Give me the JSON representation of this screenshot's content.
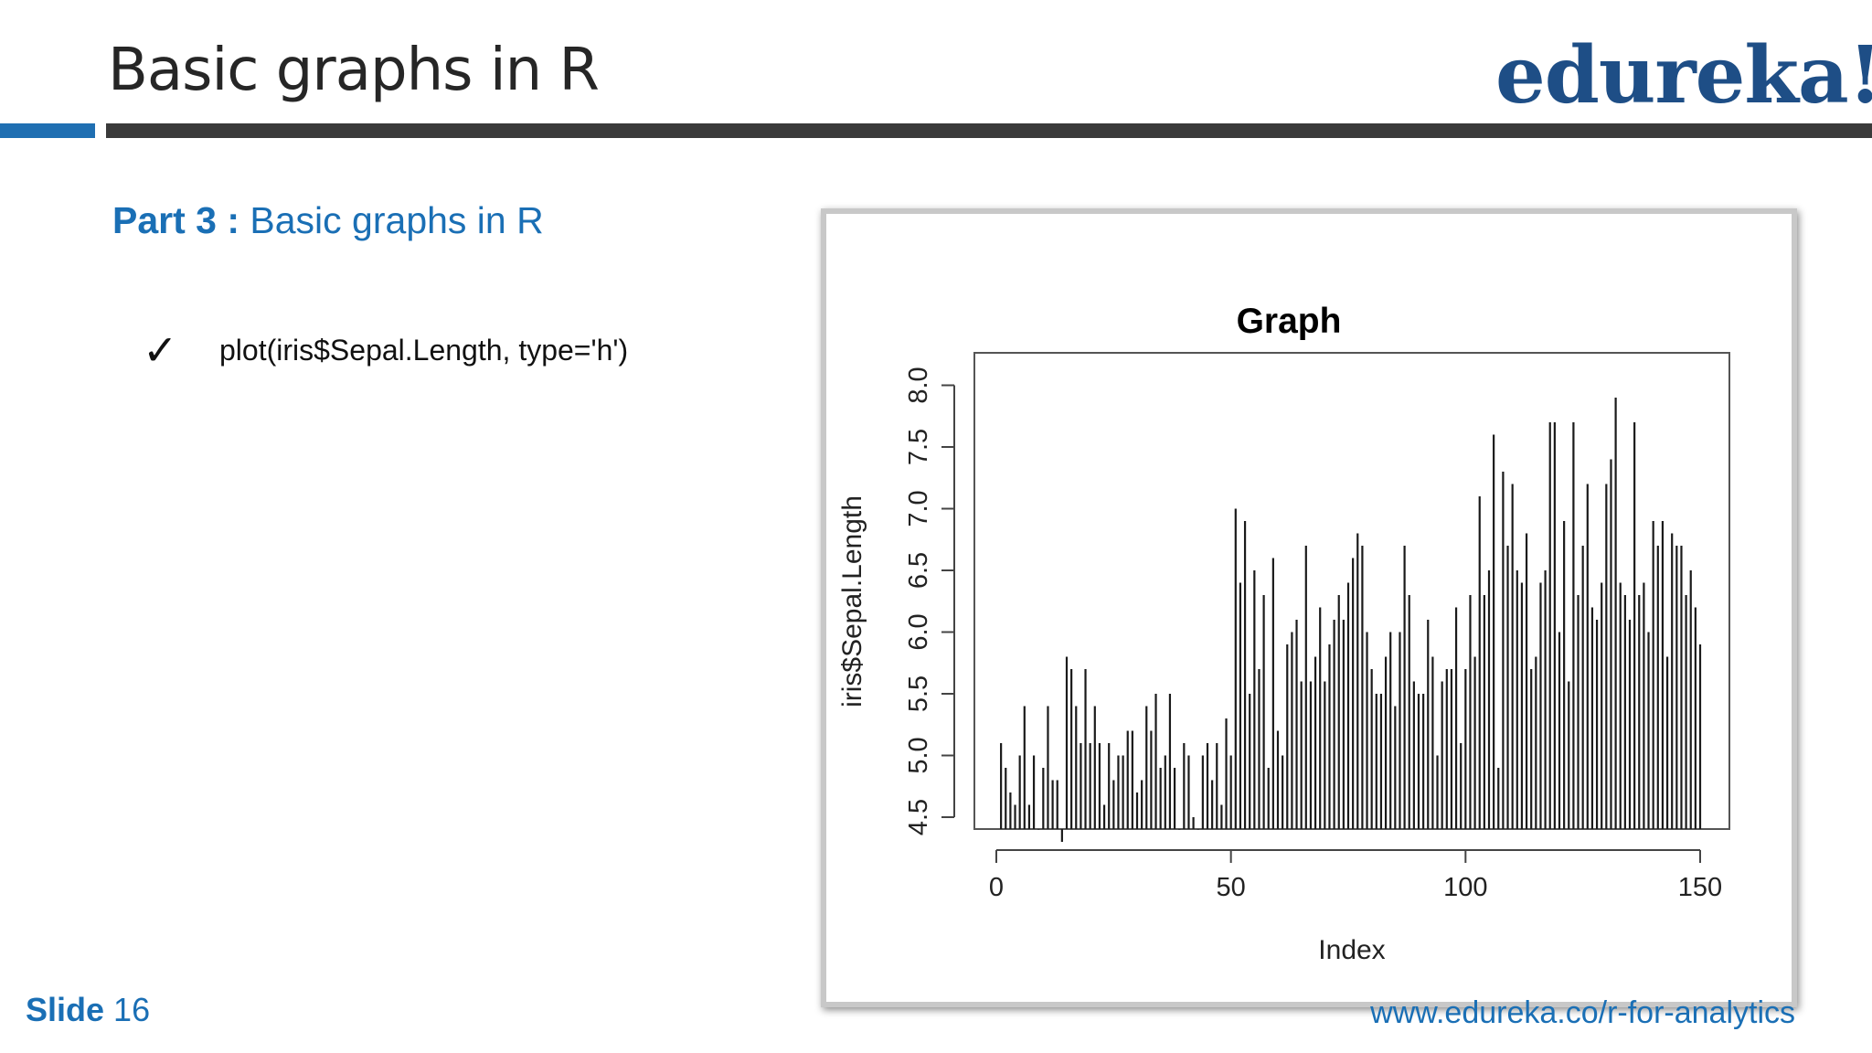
{
  "slide": {
    "title": "Basic graphs in R",
    "logo": "edureka!",
    "part_label": "Part 3 :",
    "part_title": "Basic graphs in R",
    "bullet_icon": "checkmark-icon",
    "bullet_glyph": "✓",
    "bullet_text": "plot(iris$Sepal.Length, type='h')",
    "slide_word": "Slide",
    "slide_number": "16",
    "footer_url": "www.edureka.co/r-for-analytics"
  },
  "colors": {
    "brand_blue": "#1a6fb5",
    "logo_blue": "#1e4e86",
    "title_text": "#262626",
    "rule_dark": "#3a3a3a",
    "rule_accent": "#1f6fb2"
  },
  "chart_data": {
    "type": "bar",
    "title": "Graph",
    "xlabel": "Index",
    "ylabel": "iris$Sepal.Length",
    "xlim": [
      0,
      150
    ],
    "ylim": [
      4.3,
      7.9
    ],
    "x_ticks": [
      0,
      50,
      100,
      150
    ],
    "x_tick_labels": [
      "0",
      "50",
      "100",
      "150"
    ],
    "y_ticks": [
      4.5,
      5.0,
      5.5,
      6.0,
      6.5,
      7.0,
      7.5,
      8.0
    ],
    "y_tick_labels": [
      "4.5",
      "5.0",
      "5.5",
      "6.0",
      "6.5",
      "7.0",
      "7.5",
      "8.0"
    ],
    "grid": false,
    "series": [
      {
        "values": [
          5.1,
          4.9,
          4.7,
          4.6,
          5.0,
          5.4,
          4.6,
          5.0,
          4.4,
          4.9,
          5.4,
          4.8,
          4.8,
          4.3,
          5.8,
          5.7,
          5.4,
          5.1,
          5.7,
          5.1,
          5.4,
          5.1,
          4.6,
          5.1,
          4.8,
          5.0,
          5.0,
          5.2,
          5.2,
          4.7,
          4.8,
          5.4,
          5.2,
          5.5,
          4.9,
          5.0,
          5.5,
          4.9,
          4.4,
          5.1,
          5.0,
          4.5,
          4.4,
          5.0,
          5.1,
          4.8,
          5.1,
          4.6,
          5.3,
          5.0,
          7.0,
          6.4,
          6.9,
          5.5,
          6.5,
          5.7,
          6.3,
          4.9,
          6.6,
          5.2,
          5.0,
          5.9,
          6.0,
          6.1,
          5.6,
          6.7,
          5.6,
          5.8,
          6.2,
          5.6,
          5.9,
          6.1,
          6.3,
          6.1,
          6.4,
          6.6,
          6.8,
          6.7,
          6.0,
          5.7,
          5.5,
          5.5,
          5.8,
          6.0,
          5.4,
          6.0,
          6.7,
          6.3,
          5.6,
          5.5,
          5.5,
          6.1,
          5.8,
          5.0,
          5.6,
          5.7,
          5.7,
          6.2,
          5.1,
          5.7,
          6.3,
          5.8,
          7.1,
          6.3,
          6.5,
          7.6,
          4.9,
          7.3,
          6.7,
          7.2,
          6.5,
          6.4,
          6.8,
          5.7,
          5.8,
          6.4,
          6.5,
          7.7,
          7.7,
          6.0,
          6.9,
          5.6,
          7.7,
          6.3,
          6.7,
          7.2,
          6.2,
          6.1,
          6.4,
          7.2,
          7.4,
          7.9,
          6.4,
          6.3,
          6.1,
          7.7,
          6.3,
          6.4,
          6.0,
          6.9,
          6.7,
          6.9,
          5.8,
          6.8,
          6.7,
          6.7,
          6.3,
          6.5,
          6.2,
          5.9
        ]
      }
    ]
  }
}
